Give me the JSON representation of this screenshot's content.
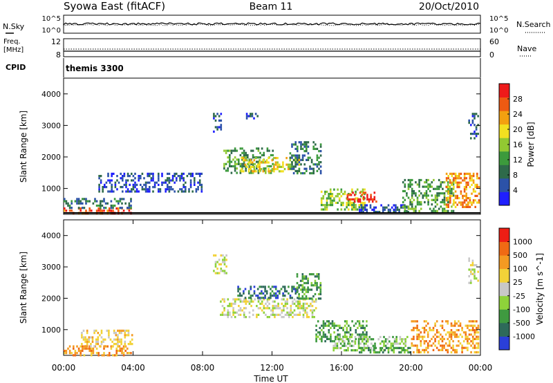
{
  "header": {
    "station": "Syowa East (fitACF)",
    "beam": "Beam 11",
    "date": "20/Oct/2010"
  },
  "summary_panels": {
    "nsky_label": "N.Sky",
    "nsky_ticks": [
      "10^5",
      "10^0"
    ],
    "nsearch_label": "N.Search",
    "nsearch_ticks": [
      "10^5",
      "10^0"
    ],
    "freq_label_1": "Freq.",
    "freq_label_2": "[MHz]",
    "freq_ticks": [
      "12",
      "8"
    ],
    "nave_label": "Nave",
    "nave_ticks": [
      "60",
      "0"
    ],
    "cpid_label": "CPID",
    "cpid_value": "themis 3300"
  },
  "chart_data": [
    {
      "type": "heatmap",
      "panel": "power",
      "ylabel": "Slant Range [km]",
      "yticks": [
        1000,
        2000,
        3000,
        4000
      ],
      "ylim": [
        180,
        4500
      ],
      "colorbar_label": "Power [dB]",
      "colorbar_ticks": [
        "28",
        "24",
        "20",
        "16",
        "12",
        "8",
        "4"
      ],
      "colorbar_colors": [
        "#1f1fff",
        "#2c52a8",
        "#2e6a4a",
        "#3c9a3c",
        "#92c832",
        "#f2e020",
        "#f3a010",
        "#ee5a12",
        "#ee1a1a"
      ],
      "regions": [
        {
          "t0": 0.0,
          "t1": 3.9,
          "r0": 200,
          "r1": 400,
          "level": 7
        },
        {
          "t0": 0.0,
          "t1": 3.9,
          "r0": 380,
          "r1": 700,
          "level": 2
        },
        {
          "t0": 2.0,
          "t1": 8.0,
          "r0": 900,
          "r1": 1500,
          "level": 1
        },
        {
          "t0": 8.6,
          "t1": 9.1,
          "r0": 2800,
          "r1": 3400,
          "level": 1
        },
        {
          "t0": 9.2,
          "t1": 12.0,
          "r0": 1500,
          "r1": 2300,
          "level": 3
        },
        {
          "t0": 10.2,
          "t1": 13.6,
          "r0": 1550,
          "r1": 2000,
          "level": 5
        },
        {
          "t0": 10.5,
          "t1": 11.2,
          "r0": 3200,
          "r1": 3400,
          "level": 1
        },
        {
          "t0": 13.0,
          "t1": 14.8,
          "r0": 1500,
          "r1": 2500,
          "level": 2
        },
        {
          "t0": 14.8,
          "t1": 17.3,
          "r0": 300,
          "r1": 1000,
          "level": 4
        },
        {
          "t0": 16.3,
          "t1": 18.0,
          "r0": 600,
          "r1": 900,
          "level": 8
        },
        {
          "t0": 17.0,
          "t1": 20.0,
          "r0": 250,
          "r1": 500,
          "level": 1
        },
        {
          "t0": 19.5,
          "t1": 22.5,
          "r0": 300,
          "r1": 1300,
          "level": 3
        },
        {
          "t0": 22.0,
          "t1": 23.9,
          "r0": 400,
          "r1": 1500,
          "level": 6
        },
        {
          "t0": 23.3,
          "t1": 23.9,
          "r0": 2600,
          "r1": 3400,
          "level": 1
        }
      ]
    },
    {
      "type": "heatmap",
      "panel": "velocity",
      "xlabel": "Time UT",
      "ylabel": "Slant Range [km]",
      "yticks": [
        1000,
        2000,
        3000,
        4000
      ],
      "xticks": [
        "00:00",
        "04:00",
        "08:00",
        "12:00",
        "16:00",
        "20:00",
        "00:00"
      ],
      "ylim": [
        180,
        4500
      ],
      "colorbar_label": "Velocity [m s^-1]",
      "colorbar_ticks": [
        "1000",
        "500",
        "100",
        "25",
        "-25",
        "-100",
        "-500",
        "-1000"
      ],
      "colorbar_colors": [
        "#2a3fd8",
        "#2e6a5a",
        "#3f9a40",
        "#8ed23a",
        "#c8c8c8",
        "#f2d238",
        "#f49a22",
        "#f06a14",
        "#ee1e14"
      ],
      "regions": [
        {
          "t0": 0.0,
          "t1": 3.9,
          "r0": 200,
          "r1": 500,
          "level": 6
        },
        {
          "t0": 1.0,
          "t1": 4.0,
          "r0": 500,
          "r1": 1000,
          "level": 5
        },
        {
          "t0": 8.6,
          "t1": 9.4,
          "r0": 2800,
          "r1": 3400,
          "level": 4
        },
        {
          "t0": 9.0,
          "t1": 14.5,
          "r0": 1400,
          "r1": 2000,
          "level": 4
        },
        {
          "t0": 10.0,
          "t1": 13.5,
          "r0": 2000,
          "r1": 2400,
          "level": 1
        },
        {
          "t0": 13.4,
          "t1": 14.8,
          "r0": 2000,
          "r1": 2800,
          "level": 2
        },
        {
          "t0": 14.5,
          "t1": 17.5,
          "r0": 600,
          "r1": 1300,
          "level": 2
        },
        {
          "t0": 15.5,
          "t1": 19.8,
          "r0": 350,
          "r1": 800,
          "level": 3
        },
        {
          "t0": 17.0,
          "t1": 20.0,
          "r0": 250,
          "r1": 450,
          "level": 2
        },
        {
          "t0": 20.0,
          "t1": 23.9,
          "r0": 250,
          "r1": 1300,
          "level": 6
        },
        {
          "t0": 23.3,
          "t1": 23.9,
          "r0": 2500,
          "r1": 3300,
          "level": 4
        }
      ]
    }
  ]
}
